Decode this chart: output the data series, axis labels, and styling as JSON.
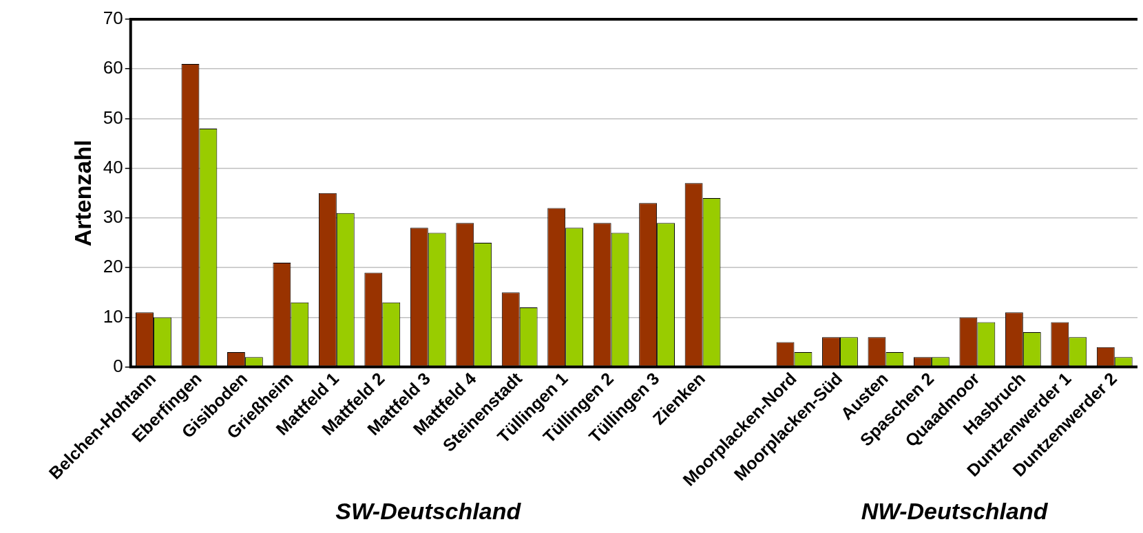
{
  "chart_data": {
    "type": "bar",
    "ylabel": "Artenzahl",
    "categories": [
      "Belchen-Hohtann",
      "Eberfingen",
      "Gisiboden",
      "Grießheim",
      "Mattfeld 1",
      "Mattfeld 2",
      "Mattfeld 3",
      "Mattfeld 4",
      "Steinenstadt",
      "Tüllingen 1",
      "Tüllingen 2",
      "Tüllingen 3",
      "Zienken",
      null,
      "Moorplacken-Nord",
      "Moorplacken-Süd",
      "Austen",
      "Spaschen 2",
      "Quaadmoor",
      "Hasbruch",
      "Duntzenwerder 1",
      "Duntzenwerder 2"
    ],
    "series": [
      {
        "color": "#993300",
        "values": [
          11,
          61,
          3,
          21,
          35,
          19,
          28,
          29,
          15,
          32,
          29,
          33,
          37,
          null,
          5,
          6,
          6,
          2,
          10,
          11,
          9,
          4
        ]
      },
      {
        "color": "#99cc00",
        "values": [
          10,
          48,
          2,
          13,
          31,
          13,
          27,
          25,
          12,
          28,
          27,
          29,
          34,
          null,
          3,
          6,
          3,
          2,
          9,
          7,
          6,
          2
        ]
      }
    ],
    "ylim": [
      0,
      70
    ],
    "yticks": [
      0,
      10,
      20,
      30,
      40,
      50,
      60,
      70
    ],
    "grid": "y",
    "legend": false,
    "annotations": [
      "SW-Deutschland",
      "NW-Deutschland"
    ]
  }
}
